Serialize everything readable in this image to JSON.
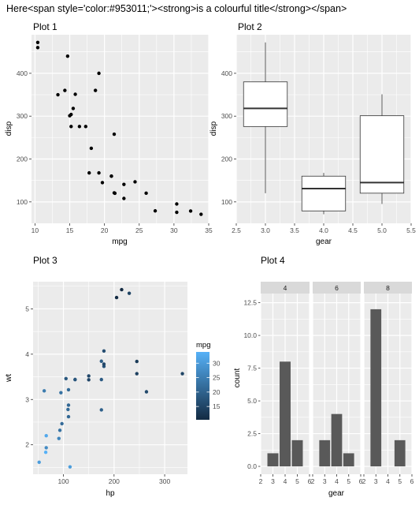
{
  "figure_title": "Here<span style='color:#953011;'><strong>is a colourful title</strong></span>",
  "colors": {
    "panel_bg": "#ebebeb",
    "grid": "#ffffff",
    "point": "#000000",
    "bar": "#595959",
    "strip": "#d9d9d9",
    "mpg_low": "#132b43",
    "mpg_high": "#56b1f7"
  },
  "chart_data": [
    {
      "type": "scatter",
      "title": "Plot 1",
      "xlabel": "mpg",
      "ylabel": "disp",
      "xlim": [
        9.5,
        35.0
      ],
      "ylim": [
        50,
        490
      ],
      "xticks": [
        10,
        15,
        20,
        25,
        30,
        35
      ],
      "yticks": [
        100,
        200,
        300,
        400
      ],
      "grid": true,
      "points": [
        [
          21.0,
          160
        ],
        [
          21.0,
          160
        ],
        [
          22.8,
          108
        ],
        [
          21.4,
          258
        ],
        [
          18.7,
          360
        ],
        [
          18.1,
          225
        ],
        [
          14.3,
          360
        ],
        [
          24.4,
          146.7
        ],
        [
          22.8,
          140.8
        ],
        [
          19.2,
          167.6
        ],
        [
          17.8,
          167.6
        ],
        [
          16.4,
          275.8
        ],
        [
          17.3,
          275.8
        ],
        [
          15.2,
          275.8
        ],
        [
          10.4,
          472
        ],
        [
          10.4,
          460
        ],
        [
          14.7,
          440
        ],
        [
          32.4,
          78.7
        ],
        [
          30.4,
          75.7
        ],
        [
          33.9,
          71.1
        ],
        [
          21.5,
          120.1
        ],
        [
          15.5,
          318
        ],
        [
          15.2,
          304
        ],
        [
          13.3,
          350
        ],
        [
          19.2,
          400
        ],
        [
          27.3,
          79
        ],
        [
          26.0,
          120.3
        ],
        [
          30.4,
          95.1
        ],
        [
          15.8,
          351
        ],
        [
          19.7,
          145
        ],
        [
          15.0,
          301
        ],
        [
          21.4,
          121
        ]
      ]
    },
    {
      "type": "box",
      "title": "Plot 2",
      "xlabel": "gear",
      "ylabel": "disp",
      "xlim": [
        2.5,
        5.5
      ],
      "ylim": [
        50,
        490
      ],
      "xticks": [
        2.5,
        3.0,
        3.5,
        4.0,
        4.5,
        5.0,
        5.5
      ],
      "yticks": [
        100,
        200,
        300,
        400
      ],
      "grid": true,
      "boxes": [
        {
          "x": 3,
          "min": 120.1,
          "q1": 275.8,
          "median": 318,
          "q3": 380,
          "max": 472
        },
        {
          "x": 4,
          "min": 71.1,
          "q1": 78.9,
          "median": 130.9,
          "q3": 160,
          "max": 167.6
        },
        {
          "x": 5,
          "min": 95.1,
          "q1": 120.3,
          "median": 145,
          "q3": 301,
          "max": 351
        }
      ]
    },
    {
      "type": "scatter",
      "title": "Plot 3",
      "xlabel": "hp",
      "ylabel": "wt",
      "xlim": [
        40,
        345
      ],
      "ylim": [
        1.35,
        5.6
      ],
      "xticks": [
        100,
        200,
        300
      ],
      "yticks": [
        2,
        3,
        4,
        5
      ],
      "grid": true,
      "legend": {
        "title": "mpg",
        "position": "right",
        "breaks": [
          15,
          20,
          25,
          30
        ],
        "range": [
          10.4,
          33.9
        ]
      },
      "points": [
        [
          110,
          2.62,
          21.0
        ],
        [
          110,
          2.875,
          21.0
        ],
        [
          93,
          2.32,
          22.8
        ],
        [
          110,
          3.215,
          21.4
        ],
        [
          175,
          3.44,
          18.7
        ],
        [
          105,
          3.46,
          18.1
        ],
        [
          245,
          3.57,
          14.3
        ],
        [
          62,
          3.19,
          24.4
        ],
        [
          95,
          3.15,
          22.8
        ],
        [
          123,
          3.44,
          19.2
        ],
        [
          123,
          3.44,
          17.8
        ],
        [
          180,
          4.07,
          16.4
        ],
        [
          180,
          3.73,
          17.3
        ],
        [
          180,
          3.78,
          15.2
        ],
        [
          205,
          5.25,
          10.4
        ],
        [
          215,
          5.424,
          10.4
        ],
        [
          230,
          5.345,
          14.7
        ],
        [
          66,
          2.2,
          32.4
        ],
        [
          52,
          1.615,
          30.4
        ],
        [
          65,
          1.835,
          33.9
        ],
        [
          97,
          2.465,
          21.5
        ],
        [
          150,
          3.52,
          15.5
        ],
        [
          150,
          3.435,
          15.2
        ],
        [
          245,
          3.84,
          13.3
        ],
        [
          175,
          3.845,
          19.2
        ],
        [
          66,
          1.935,
          27.3
        ],
        [
          91,
          2.14,
          26.0
        ],
        [
          113,
          1.513,
          30.4
        ],
        [
          264,
          3.17,
          15.8
        ],
        [
          175,
          2.77,
          19.7
        ],
        [
          335,
          3.57,
          15.0
        ],
        [
          109,
          2.78,
          21.4
        ]
      ]
    },
    {
      "type": "bar",
      "title": "Plot 4",
      "xlabel": "gear",
      "ylabel": "count",
      "ylim": [
        -0.6,
        13.2
      ],
      "xlim": [
        2,
        6
      ],
      "xticks": [
        2,
        3,
        4,
        5,
        6
      ],
      "yticks": [
        0.0,
        2.5,
        5.0,
        7.5,
        10.0,
        12.5
      ],
      "grid": true,
      "facets": [
        {
          "label": "4",
          "bars": [
            {
              "x": 3,
              "count": 1
            },
            {
              "x": 4,
              "count": 8
            },
            {
              "x": 5,
              "count": 2
            }
          ]
        },
        {
          "label": "6",
          "bars": [
            {
              "x": 3,
              "count": 2
            },
            {
              "x": 4,
              "count": 4
            },
            {
              "x": 5,
              "count": 1
            }
          ]
        },
        {
          "label": "8",
          "bars": [
            {
              "x": 3,
              "count": 12
            },
            {
              "x": 5,
              "count": 2
            }
          ]
        }
      ]
    }
  ]
}
